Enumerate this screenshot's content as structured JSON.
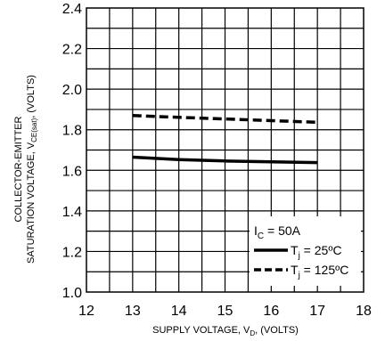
{
  "chart_data": {
    "type": "line",
    "title": "",
    "xlabel": {
      "main": "SUPPLY VOLTAGE, V",
      "sub": "D",
      "suffix": ", (VOLTS)"
    },
    "ylabel": {
      "line1": "COLLECTOR-EMITTER",
      "line2_main": "SATURATION VOLTAGE, V",
      "line2_sub": "CE(sat)",
      "line2_suffix": ", (VOLTS)"
    },
    "xlim": [
      12,
      18
    ],
    "ylim": [
      1.0,
      2.4
    ],
    "x_ticks": [
      12,
      13,
      14,
      15,
      16,
      17,
      18
    ],
    "x_tick_labels": [
      "12",
      "13",
      "14",
      "15",
      "16",
      "17",
      "18"
    ],
    "y_ticks": [
      1.0,
      1.2,
      1.4,
      1.6,
      1.8,
      2.0,
      2.2,
      2.4
    ],
    "y_tick_labels": [
      "1.0",
      "1.2",
      "1.4",
      "1.6",
      "1.8",
      "2.0",
      "2.2",
      "2.4"
    ],
    "x_grid_step": 0.5,
    "y_grid_step": 0.1,
    "grid": true,
    "legend_position": "bottom-right",
    "legend_header": {
      "main": "I",
      "sub": "C",
      "suffix": " = 50A"
    },
    "series": [
      {
        "label": {
          "main": "T",
          "sub": "j",
          "suffix": " = 25ºC"
        },
        "style": "solid",
        "x": [
          13,
          14,
          15,
          16,
          17
        ],
        "y": [
          1.665,
          1.653,
          1.646,
          1.642,
          1.638
        ]
      },
      {
        "label": {
          "main": "T",
          "sub": "j",
          "suffix": " = 125ºC"
        },
        "style": "dashed",
        "x": [
          13,
          14,
          15,
          16,
          17
        ],
        "y": [
          1.87,
          1.861,
          1.853,
          1.845,
          1.837
        ]
      }
    ]
  }
}
